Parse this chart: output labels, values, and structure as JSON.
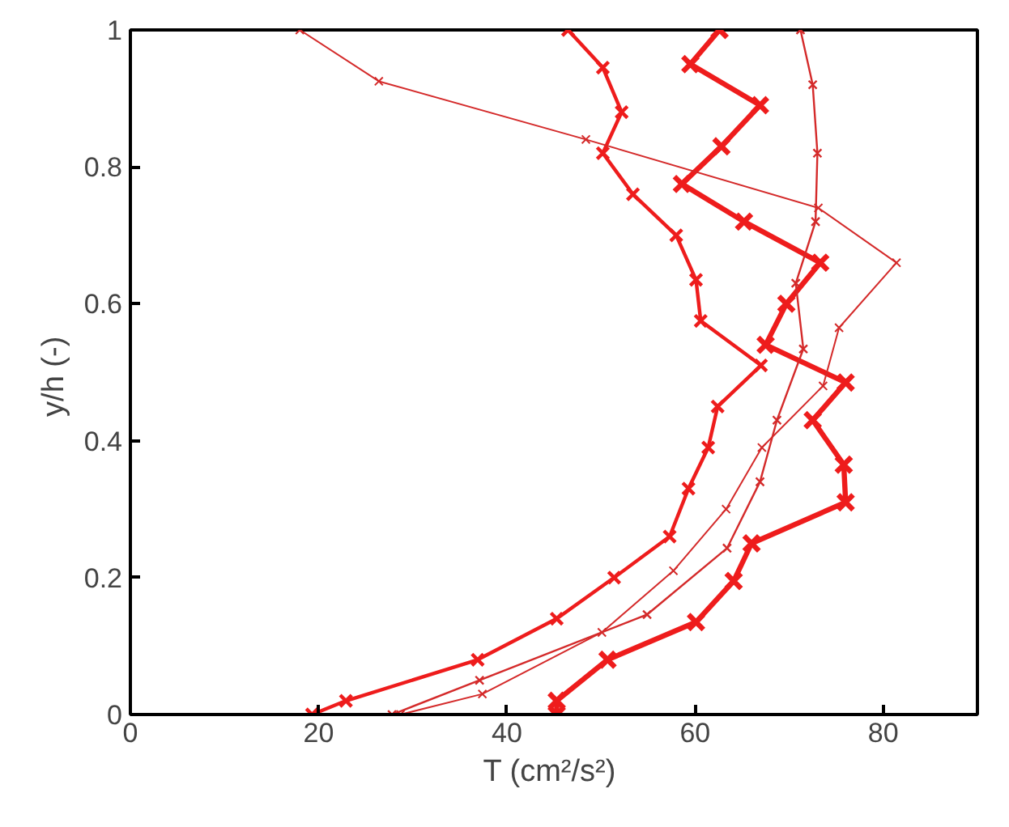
{
  "chart_data": {
    "type": "line",
    "xlabel": "T  (cm²/s²)",
    "ylabel": "y/h  (-)",
    "xlim": [
      0,
      90
    ],
    "ylim": [
      0,
      1
    ],
    "xticks": [
      0,
      20,
      40,
      60,
      80
    ],
    "yticks": [
      0,
      0.2,
      0.4,
      0.6,
      0.8,
      1
    ],
    "grid": false,
    "marker": "cross",
    "line_style": "solid",
    "series": [
      {
        "color": "#ee1c1c",
        "x": [
          19.3,
          22.9,
          36.9,
          45.3,
          51.4,
          57.3,
          59.3,
          61.4,
          62.4,
          67.0,
          60.6,
          60.1,
          58.0,
          53.4,
          50.2,
          52.2,
          50.2,
          46.5
        ],
        "values": [
          0,
          0.02,
          0.08,
          0.14,
          0.2,
          0.26,
          0.33,
          0.39,
          0.45,
          0.51,
          0.575,
          0.635,
          0.7,
          0.76,
          0.82,
          0.88,
          0.945,
          1
        ]
      },
      {
        "color": "#ee1c1c",
        "x": [
          45.3,
          45.3,
          50.7,
          60.1,
          64.1,
          66.0,
          76.0,
          75.8,
          72.5,
          76.0,
          67.5,
          69.7,
          73.3,
          65.2,
          58.6,
          62.8,
          66.9,
          59.5,
          62.6
        ],
        "values": [
          0,
          0.02,
          0.08,
          0.135,
          0.195,
          0.25,
          0.31,
          0.365,
          0.43,
          0.485,
          0.54,
          0.6,
          0.66,
          0.72,
          0.775,
          0.83,
          0.89,
          0.95,
          1
        ]
      },
      {
        "color": "#d42a2a",
        "x": [
          28.7,
          37.4,
          50.1,
          57.7,
          63.3,
          67.1,
          73.6,
          75.3,
          81.4,
          73.1,
          48.4,
          26.4,
          18.0
        ],
        "values": [
          0,
          0.03,
          0.12,
          0.21,
          0.3,
          0.39,
          0.48,
          0.565,
          0.66,
          0.74,
          0.84,
          0.925,
          1
        ]
      },
      {
        "color": "#d42a2a",
        "x": [
          27.8,
          37.1,
          54.9,
          63.4,
          66.9,
          68.7,
          71.5,
          70.7,
          72.8,
          73.0,
          72.5,
          71.2
        ],
        "values": [
          0,
          0.05,
          0.146,
          0.243,
          0.34,
          0.43,
          0.534,
          0.63,
          0.72,
          0.82,
          0.92,
          1
        ]
      }
    ]
  }
}
